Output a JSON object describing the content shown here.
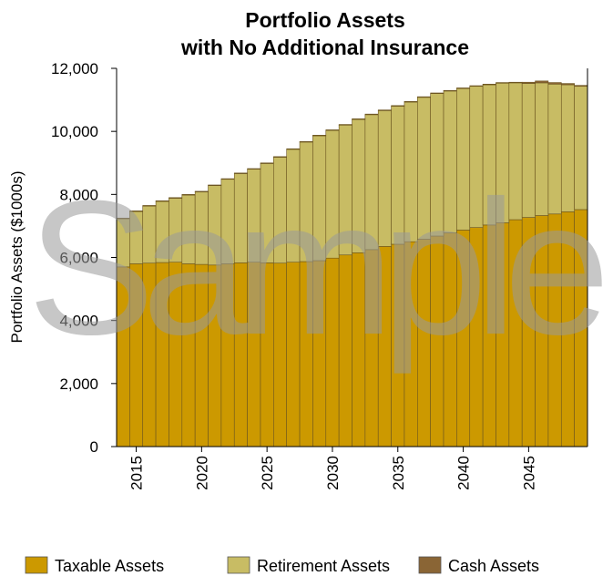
{
  "chart_data": {
    "type": "stacked-bar",
    "title": "Portfolio Assets",
    "subtitle": "with No Additional Insurance",
    "y_label": "Portfolio Assets ($1000s)",
    "watermark": "Sample",
    "x": [
      2014,
      2015,
      2016,
      2017,
      2018,
      2019,
      2020,
      2021,
      2022,
      2023,
      2024,
      2025,
      2026,
      2027,
      2028,
      2029,
      2030,
      2031,
      2032,
      2033,
      2034,
      2035,
      2036,
      2037,
      2038,
      2039,
      2040,
      2041,
      2042,
      2043,
      2044,
      2045,
      2046,
      2047,
      2048,
      2049
    ],
    "xlim": [
      2013.5,
      2049.5
    ],
    "xticks": [
      2015,
      2020,
      2025,
      2030,
      2035,
      2040,
      2045
    ],
    "ylim": [
      0,
      12000
    ],
    "yticks": [
      0,
      {
        "value": 2000,
        "label": "2,000"
      },
      {
        "value": 4000,
        "label": "4,000"
      },
      {
        "value": 6000,
        "label": "6,000"
      },
      {
        "value": 8000,
        "label": "8,000"
      },
      {
        "value": 10000,
        "label": "10,000"
      },
      {
        "value": 12000,
        "label": "12,000"
      }
    ],
    "series": [
      {
        "name": "Taxable Assets",
        "color": "#cc9900",
        "values": [
          5700,
          5800,
          5820,
          5840,
          5850,
          5800,
          5780,
          5760,
          5800,
          5830,
          5850,
          5830,
          5820,
          5850,
          5870,
          5900,
          5980,
          6080,
          6150,
          6250,
          6350,
          6420,
          6500,
          6580,
          6680,
          6780,
          6870,
          6950,
          7030,
          7100,
          7200,
          7270,
          7330,
          7380,
          7450,
          7520
        ]
      },
      {
        "name": "Retirement Assets",
        "color": "#c8bc64",
        "values": [
          1530,
          1660,
          1810,
          1940,
          2030,
          2180,
          2300,
          2520,
          2680,
          2830,
          2950,
          3150,
          3360,
          3580,
          3790,
          3960,
          4050,
          4120,
          4230,
          4280,
          4310,
          4380,
          4430,
          4500,
          4520,
          4500,
          4490,
          4480,
          4450,
          4430,
          4340,
          4250,
          4210,
          4120,
          4030,
          3910
        ]
      },
      {
        "name": "Cash Assets",
        "color": "#8a6535",
        "values": [
          20,
          20,
          20,
          20,
          20,
          20,
          20,
          20,
          20,
          20,
          20,
          20,
          20,
          20,
          20,
          20,
          20,
          20,
          20,
          20,
          20,
          20,
          20,
          20,
          20,
          20,
          20,
          20,
          20,
          20,
          20,
          40,
          60,
          50,
          40,
          30
        ]
      }
    ]
  }
}
